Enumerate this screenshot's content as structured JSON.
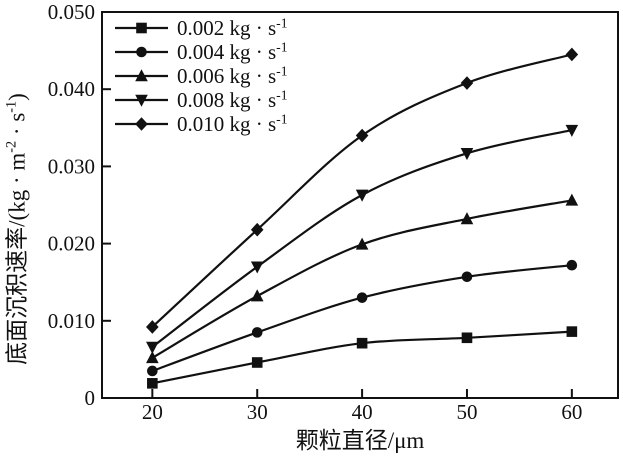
{
  "figure": {
    "background_color": "#ffffff",
    "ink_color": "#111111"
  },
  "chart_data": {
    "type": "line",
    "title": "",
    "xlabel": "颗粒直径/μm",
    "ylabel": "底面沉积速率/(kg · m⁻² · s⁻¹)",
    "grid": false,
    "legend_position": "top-left-inside",
    "xlim": [
      15.2,
      64.4
    ],
    "ylim": [
      0,
      0.05
    ],
    "x": [
      20,
      30,
      40,
      50,
      60
    ],
    "x_tick_labels": [
      "20",
      "30",
      "40",
      "50",
      "60"
    ],
    "y_tick_values": [
      0,
      0.01,
      0.02,
      0.03,
      0.04,
      0.05
    ],
    "y_tick_labels": [
      "0",
      "0.010",
      "0.020",
      "0.030",
      "0.040",
      "0.050"
    ],
    "series": [
      {
        "name": "0.002 kg · s⁻¹",
        "marker": "square",
        "values": [
          0.0019,
          0.0046,
          0.0071,
          0.0078,
          0.0086
        ]
      },
      {
        "name": "0.004 kg · s⁻¹",
        "marker": "circle",
        "values": [
          0.0035,
          0.0085,
          0.013,
          0.0157,
          0.0172
        ]
      },
      {
        "name": "0.006 kg · s⁻¹",
        "marker": "triangle-up",
        "values": [
          0.0052,
          0.0132,
          0.0199,
          0.0232,
          0.0256
        ]
      },
      {
        "name": "0.008 kg · s⁻¹",
        "marker": "triangle-down",
        "values": [
          0.0066,
          0.017,
          0.0263,
          0.0317,
          0.0347
        ]
      },
      {
        "name": "0.010 kg · s⁻¹",
        "marker": "diamond",
        "values": [
          0.0092,
          0.0218,
          0.034,
          0.0408,
          0.0445
        ]
      }
    ]
  }
}
